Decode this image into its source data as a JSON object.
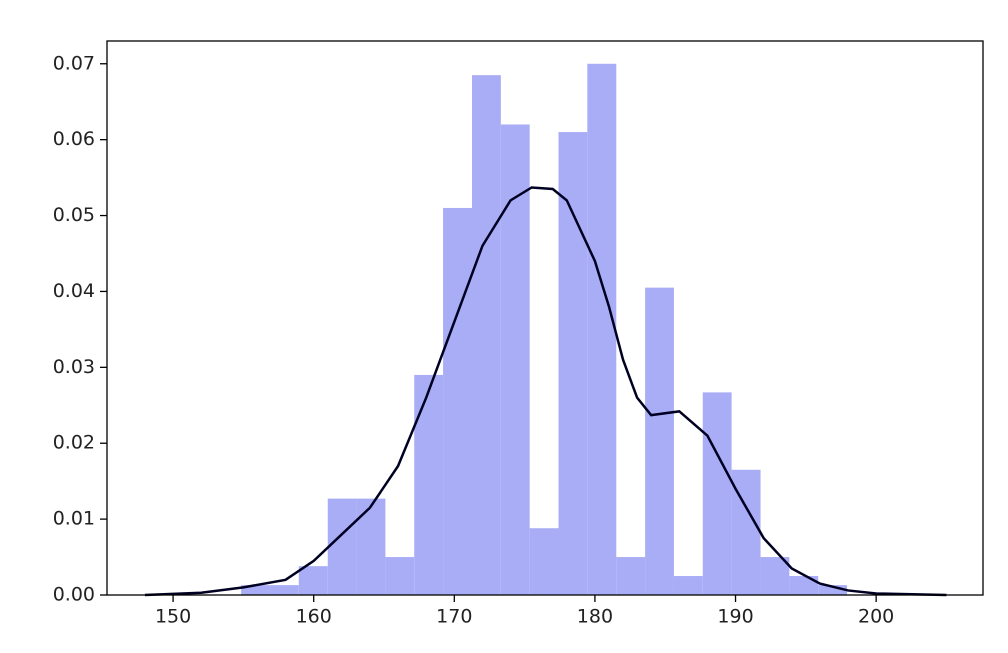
{
  "chart_data": {
    "type": "histogram",
    "bins": [
      154.84,
      156.89,
      158.94,
      161.0,
      163.05,
      165.1,
      167.15,
      169.2,
      171.26,
      173.31,
      175.36,
      177.41,
      179.46,
      181.52,
      183.57,
      185.62,
      187.67,
      189.72,
      191.78,
      193.83,
      195.88,
      197.93
    ],
    "values": [
      0.0013,
      0.0013,
      0.0038,
      0.0127,
      0.0127,
      0.005,
      0.029,
      0.051,
      0.0685,
      0.062,
      0.0088,
      0.061,
      0.07,
      0.005,
      0.0405,
      0.0025,
      0.0267,
      0.0165,
      0.005,
      0.0025,
      0.0013
    ],
    "color": "#a9adf5",
    "kde": {
      "color": "#000022",
      "x": [
        148,
        152,
        155,
        158,
        160,
        162,
        164,
        166,
        168,
        170,
        172,
        174,
        175.5,
        177,
        178,
        180,
        181,
        182,
        183,
        184,
        186,
        188,
        190,
        192,
        194,
        196,
        198,
        200,
        205
      ],
      "values": [
        0,
        0.0003,
        0.001,
        0.002,
        0.0045,
        0.008,
        0.0115,
        0.017,
        0.026,
        0.036,
        0.046,
        0.052,
        0.0537,
        0.0535,
        0.052,
        0.044,
        0.038,
        0.031,
        0.026,
        0.0237,
        0.0242,
        0.021,
        0.014,
        0.0075,
        0.0035,
        0.0015,
        0.0006,
        0.0002,
        0
      ]
    },
    "xlim": [
      145.3,
      207.6
    ],
    "ylim": [
      0,
      0.073
    ],
    "xticks": [
      150,
      160,
      170,
      180,
      190,
      200
    ],
    "yticks": [
      {
        "value": 0,
        "label": "0.00"
      },
      0.01,
      0.02,
      0.03,
      0.04,
      0.05,
      0.06,
      0.07
    ]
  }
}
